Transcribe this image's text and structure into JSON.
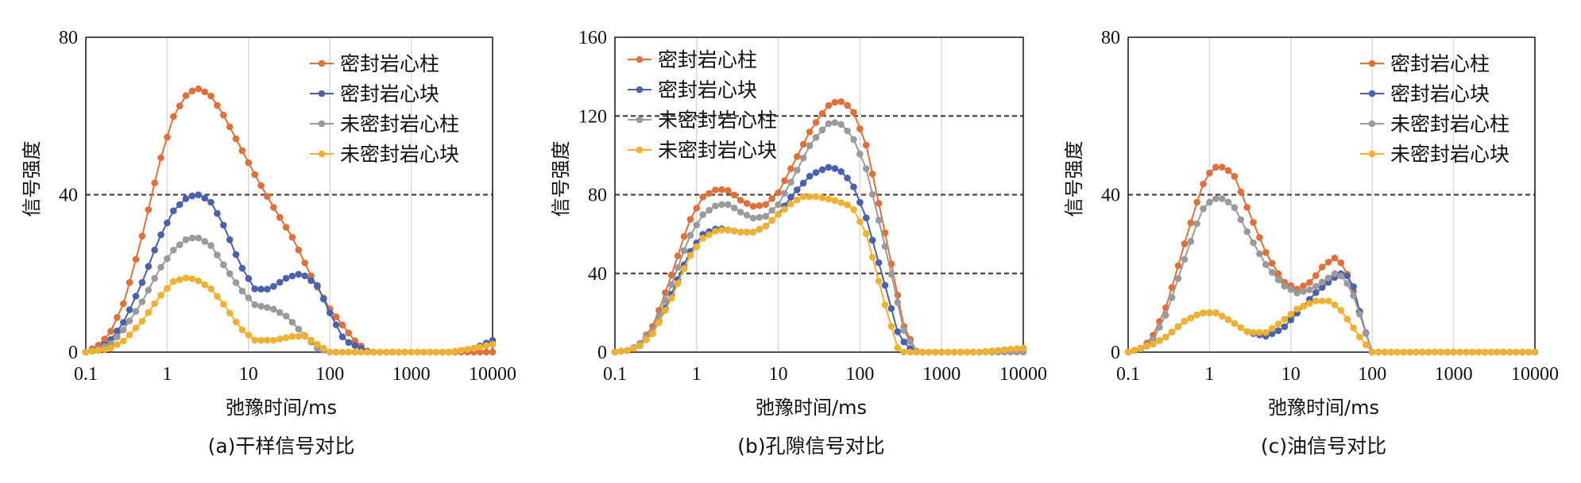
{
  "colors": {
    "series1": "#E0703A",
    "series2": "#4A62AE",
    "series3": "#9A9A9A",
    "series4": "#F0B030",
    "refline": "#5a4036"
  },
  "chart_data": [
    {
      "type": "line",
      "caption": "(a)干样信号对比",
      "xlabel": "弛豫时间/ms",
      "ylabel": "信号强度",
      "xscale": "log",
      "xlim": [
        0.1,
        10000
      ],
      "ylim": [
        0,
        80
      ],
      "xticks": [
        "0.1",
        "1",
        "10",
        "100",
        "1000",
        "10000"
      ],
      "yticks": [
        "0",
        "40",
        "80"
      ],
      "ref_lines": [
        40
      ],
      "legend_position": "top-right",
      "series": [
        {
          "name": "密封岩心柱",
          "x": [
            0.1,
            0.15,
            0.2,
            0.3,
            0.5,
            0.8,
            1.2,
            1.8,
            2.5,
            3.5,
            5,
            8,
            12,
            20,
            35,
            60,
            100,
            200,
            300,
            500,
            1000,
            2000,
            5000,
            10000
          ],
          "y": [
            0,
            2,
            5,
            13,
            30,
            48,
            60,
            66,
            67,
            65,
            60,
            52,
            45,
            37,
            29,
            19,
            11,
            3,
            0,
            0,
            0,
            0,
            0,
            0
          ]
        },
        {
          "name": "密封岩心块",
          "x": [
            0.1,
            0.15,
            0.2,
            0.3,
            0.5,
            0.8,
            1.2,
            1.8,
            2.5,
            3.5,
            5,
            8,
            12,
            18,
            30,
            45,
            70,
            100,
            150,
            300,
            1000,
            3000,
            6000,
            10000
          ],
          "y": [
            0,
            1,
            3,
            8,
            18,
            29,
            36,
            39.5,
            40,
            38,
            32,
            22,
            16,
            16,
            19,
            20,
            17,
            10,
            3,
            0,
            0,
            0,
            1,
            3
          ]
        },
        {
          "name": "未密封岩心柱",
          "x": [
            0.1,
            0.15,
            0.2,
            0.3,
            0.5,
            0.8,
            1.2,
            1.8,
            2.5,
            3.5,
            5,
            8,
            12,
            20,
            30,
            45,
            70,
            100,
            200,
            1000,
            3000,
            6000,
            10000
          ],
          "y": [
            0,
            1,
            2,
            6,
            13,
            21,
            26,
            29,
            29,
            27,
            22,
            16,
            12,
            11,
            9,
            5,
            1,
            0,
            0,
            0,
            0,
            1,
            2
          ]
        },
        {
          "name": "未密封岩心块",
          "x": [
            0.1,
            0.15,
            0.2,
            0.3,
            0.5,
            0.8,
            1.2,
            1.8,
            2.5,
            3.5,
            5,
            8,
            12,
            20,
            35,
            50,
            70,
            100,
            200,
            1000,
            3000,
            6000,
            10000
          ],
          "y": [
            0,
            0.5,
            1,
            3,
            8,
            14,
            18,
            19,
            18,
            16,
            12,
            6,
            3,
            3,
            4,
            4,
            2,
            0,
            0,
            0,
            0,
            1,
            2
          ]
        }
      ]
    },
    {
      "type": "line",
      "caption": "(b)孔隙信号对比",
      "xlabel": "弛豫时间/ms",
      "ylabel": "信号强度",
      "xscale": "log",
      "xlim": [
        0.1,
        10000
      ],
      "ylim": [
        0,
        160
      ],
      "xticks": [
        "0.1",
        "1",
        "10",
        "100",
        "1000",
        "10000"
      ],
      "yticks": [
        "0",
        "40",
        "80",
        "120",
        "160"
      ],
      "ref_lines": [
        40,
        80,
        120
      ],
      "legend_position": "top-left",
      "series": [
        {
          "name": "密封岩心柱",
          "x": [
            0.1,
            0.15,
            0.2,
            0.3,
            0.5,
            0.8,
            1.2,
            1.8,
            2.5,
            3.5,
            5,
            7,
            10,
            15,
            25,
            40,
            55,
            80,
            120,
            200,
            350,
            500,
            1000,
            3000,
            10000
          ],
          "y": [
            0,
            1,
            4,
            14,
            40,
            66,
            79,
            83,
            82,
            77,
            74,
            75,
            81,
            95,
            113,
            125,
            128,
            124,
            105,
            62,
            12,
            0,
            0,
            0,
            2
          ]
        },
        {
          "name": "密封岩心块",
          "x": [
            0.1,
            0.15,
            0.2,
            0.3,
            0.5,
            0.8,
            1.2,
            1.8,
            2.5,
            3.5,
            5,
            7,
            10,
            15,
            25,
            40,
            55,
            80,
            120,
            200,
            300,
            450,
            1000,
            3000,
            10000
          ],
          "y": [
            0,
            1,
            3,
            10,
            30,
            50,
            60,
            63,
            62,
            61,
            61,
            64,
            70,
            80,
            90,
            94,
            93,
            86,
            68,
            35,
            8,
            0,
            0,
            0,
            2
          ]
        },
        {
          "name": "未密封岩心柱",
          "x": [
            0.1,
            0.15,
            0.2,
            0.3,
            0.5,
            0.8,
            1.2,
            1.8,
            2.5,
            3.5,
            5,
            7,
            10,
            15,
            25,
            40,
            55,
            80,
            120,
            200,
            350,
            500,
            1000,
            3000,
            10000
          ],
          "y": [
            0,
            1,
            4,
            12,
            35,
            58,
            70,
            75,
            75,
            71,
            68,
            69,
            75,
            88,
            106,
            116,
            117,
            110,
            93,
            55,
            10,
            0,
            0,
            0,
            0
          ]
        },
        {
          "name": "未密封岩心块",
          "x": [
            0.1,
            0.15,
            0.2,
            0.3,
            0.5,
            0.8,
            1.2,
            1.8,
            2.5,
            3.5,
            5,
            7,
            10,
            15,
            20,
            30,
            50,
            80,
            120,
            200,
            300,
            450,
            1000,
            3000,
            10000
          ],
          "y": [
            0,
            1,
            3,
            10,
            28,
            48,
            58,
            62,
            62,
            61,
            61,
            64,
            70,
            76,
            79,
            79,
            77,
            74,
            60,
            25,
            0,
            0,
            0,
            0,
            2
          ]
        }
      ]
    },
    {
      "type": "line",
      "caption": "(c)油信号对比",
      "xlabel": "弛豫时间/ms",
      "ylabel": "信号强度",
      "xscale": "log",
      "xlim": [
        0.1,
        10000
      ],
      "ylim": [
        0,
        80
      ],
      "xticks": [
        "0.1",
        "1",
        "10",
        "100",
        "1000",
        "10000"
      ],
      "yticks": [
        "0",
        "40",
        "80"
      ],
      "ref_lines": [
        40
      ],
      "legend_position": "top-right",
      "series": [
        {
          "name": "密封岩心柱",
          "x": [
            0.1,
            0.15,
            0.2,
            0.3,
            0.5,
            0.8,
            1.1,
            1.5,
            2,
            3,
            5,
            8,
            12,
            18,
            25,
            35,
            45,
            60,
            80,
            100,
            150,
            1000,
            10000
          ],
          "y": [
            0,
            1,
            4,
            12,
            28,
            42,
            47,
            47,
            45,
            36,
            25,
            18,
            16,
            18,
            22,
            24,
            22,
            15,
            6,
            0,
            0,
            0,
            0
          ]
        },
        {
          "name": "密封岩心块",
          "x": [
            0.1,
            0.2,
            0.3,
            0.5,
            0.8,
            1.2,
            1.8,
            3,
            5,
            8,
            12,
            20,
            30,
            40,
            55,
            75,
            100,
            150,
            1000,
            10000
          ],
          "y": [
            0,
            2,
            4,
            8,
            10,
            10,
            8,
            5,
            4,
            6,
            10,
            15,
            18,
            20,
            19,
            8,
            0,
            0,
            0,
            0
          ]
        },
        {
          "name": "未密封岩心柱",
          "x": [
            0.1,
            0.15,
            0.2,
            0.3,
            0.5,
            0.8,
            1.1,
            1.5,
            2,
            3,
            5,
            8,
            12,
            18,
            25,
            35,
            45,
            60,
            80,
            100,
            150,
            1000,
            10000
          ],
          "y": [
            0,
            1,
            3,
            10,
            24,
            36,
            39,
            39,
            37,
            30,
            22,
            17,
            15,
            16,
            18,
            20,
            19,
            14,
            6,
            0,
            0,
            0,
            0
          ]
        },
        {
          "name": "未密封岩心块",
          "x": [
            0.1,
            0.2,
            0.3,
            0.5,
            0.8,
            1.2,
            1.8,
            3,
            5,
            8,
            12,
            20,
            30,
            40,
            55,
            75,
            100,
            150,
            1000,
            10000
          ],
          "y": [
            0,
            2,
            4,
            8,
            10,
            10,
            8,
            5,
            5,
            8,
            11,
            13,
            13,
            11,
            7,
            3,
            0,
            0,
            0,
            0
          ]
        }
      ]
    }
  ]
}
